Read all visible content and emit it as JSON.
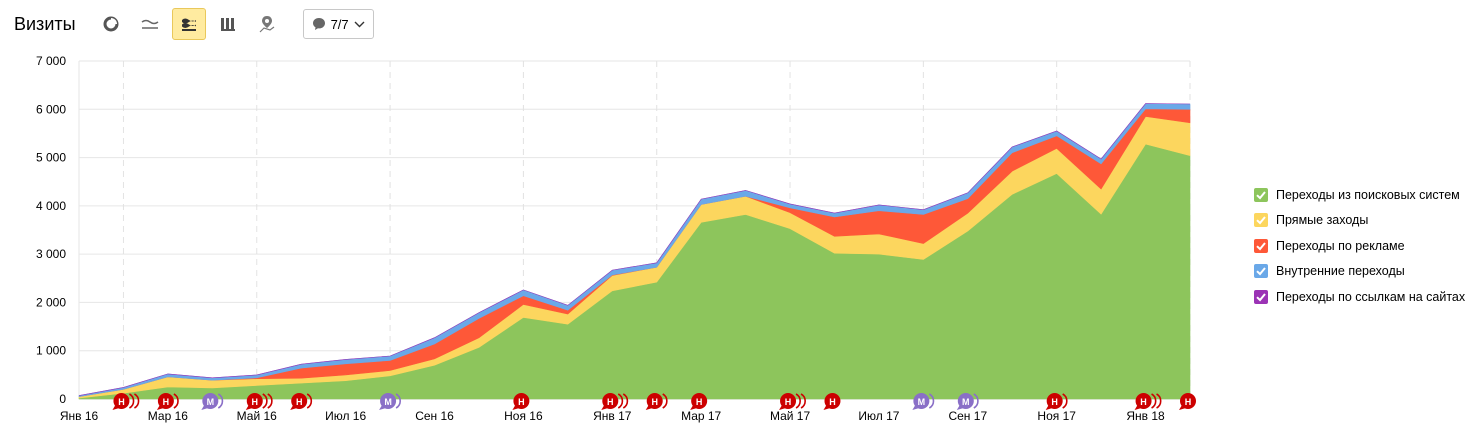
{
  "header": {
    "title": "Визиты",
    "icons": [
      "pie-chart-icon",
      "line-chart-icon",
      "area-chart-icon",
      "bar-chart-icon",
      "map-icon"
    ],
    "dropdown_value": "7/7"
  },
  "chart_data": {
    "type": "area",
    "stacked": true,
    "x": [
      "2016-01",
      "2016-02",
      "2016-03",
      "2016-04",
      "2016-05",
      "2016-06",
      "2016-07",
      "2016-08",
      "2016-09",
      "2016-10",
      "2016-11",
      "2016-12",
      "2017-01",
      "2017-02",
      "2017-03",
      "2017-04",
      "2017-05",
      "2017-06",
      "2017-07",
      "2017-08",
      "2017-09",
      "2017-10",
      "2017-11",
      "2017-12",
      "2018-01",
      "2018-02"
    ],
    "x_tick_labels": [
      "Янв 16",
      "Мар 16",
      "Май 16",
      "Июл 16",
      "Сен 16",
      "Ноя 16",
      "Янв 17",
      "Мар 17",
      "Май 17",
      "Июл 17",
      "Сен 17",
      "Ноя 17",
      "Янв 18"
    ],
    "ylim": [
      0,
      7000
    ],
    "y_ticks": [
      "0",
      "1 000",
      "2 000",
      "3 000",
      "4 000",
      "5 000",
      "6 000",
      "7 000"
    ],
    "series": [
      {
        "name": "Переходы из поисковых систем",
        "color": "#8dc55c",
        "values": [
          20,
          120,
          250,
          230,
          280,
          330,
          380,
          480,
          700,
          1070,
          1690,
          1550,
          2240,
          2420,
          3660,
          3820,
          3530,
          3020,
          3000,
          2890,
          3480,
          4240,
          4670,
          3830,
          5280,
          5040
        ]
      },
      {
        "name": "Прямые заходы",
        "color": "#fcd65e",
        "values": [
          30,
          80,
          210,
          160,
          140,
          100,
          120,
          110,
          130,
          200,
          270,
          210,
          320,
          310,
          370,
          380,
          330,
          350,
          420,
          330,
          370,
          480,
          520,
          520,
          570,
          680
        ]
      },
      {
        "name": "Переходы по рекламе",
        "color": "#fe5838",
        "values": [
          0,
          0,
          0,
          0,
          20,
          210,
          230,
          210,
          310,
          400,
          180,
          80,
          10,
          0,
          0,
          0,
          100,
          400,
          480,
          600,
          300,
          380,
          260,
          520,
          160,
          280
        ]
      },
      {
        "name": "Внутренние переходы",
        "color": "#6aa8e8",
        "values": [
          20,
          40,
          60,
          50,
          60,
          80,
          90,
          90,
          130,
          120,
          120,
          100,
          100,
          90,
          110,
          120,
          80,
          80,
          120,
          100,
          120,
          120,
          100,
          100,
          110,
          110
        ]
      },
      {
        "name": "Переходы по ссылкам на сайтах",
        "color": "#9b33b5",
        "values": [
          0,
          0,
          0,
          0,
          0,
          0,
          0,
          0,
          0,
          0,
          0,
          0,
          0,
          0,
          0,
          0,
          0,
          0,
          0,
          0,
          0,
          0,
          0,
          0,
          0,
          0
        ]
      }
    ],
    "annotations": [
      {
        "x": "2016-02",
        "labels": [
          "Н"
        ],
        "count": 3,
        "color": "#cc0000"
      },
      {
        "x": "2016-03",
        "labels": [
          "Н"
        ],
        "count": 2,
        "color": "#cc0000"
      },
      {
        "x": "2016-04",
        "labels": [
          "М"
        ],
        "count": 2,
        "color": "#8a6fc7"
      },
      {
        "x": "2016-05",
        "labels": [
          "Н"
        ],
        "count": 3,
        "color": "#cc0000"
      },
      {
        "x": "2016-06",
        "labels": [
          "Н"
        ],
        "count": 2,
        "color": "#cc0000"
      },
      {
        "x": "2016-08",
        "labels": [
          "М"
        ],
        "count": 2,
        "color": "#8a6fc7"
      },
      {
        "x": "2016-11",
        "labels": [
          "Н"
        ],
        "count": 1,
        "color": "#cc0000"
      },
      {
        "x": "2017-01",
        "labels": [
          "Н"
        ],
        "count": 3,
        "color": "#cc0000"
      },
      {
        "x": "2017-02",
        "labels": [
          "Н"
        ],
        "count": 2,
        "color": "#cc0000"
      },
      {
        "x": "2017-03",
        "labels": [
          "Н"
        ],
        "count": 1,
        "color": "#cc0000"
      },
      {
        "x": "2017-05",
        "labels": [
          "Н"
        ],
        "count": 3,
        "color": "#cc0000"
      },
      {
        "x": "2017-06",
        "labels": [
          "Н"
        ],
        "count": 1,
        "color": "#cc0000"
      },
      {
        "x": "2017-08",
        "labels": [
          "М"
        ],
        "count": 2,
        "color": "#8a6fc7"
      },
      {
        "x": "2017-09",
        "labels": [
          "М"
        ],
        "count": 2,
        "color": "#8a6fc7"
      },
      {
        "x": "2017-11",
        "labels": [
          "Н"
        ],
        "count": 2,
        "color": "#cc0000"
      },
      {
        "x": "2018-01",
        "labels": [
          "Н"
        ],
        "count": 3,
        "color": "#cc0000"
      },
      {
        "x": "2018-02",
        "labels": [
          "Н"
        ],
        "count": 1,
        "color": "#cc0000"
      }
    ],
    "legend_position": "right",
    "grid": true
  }
}
